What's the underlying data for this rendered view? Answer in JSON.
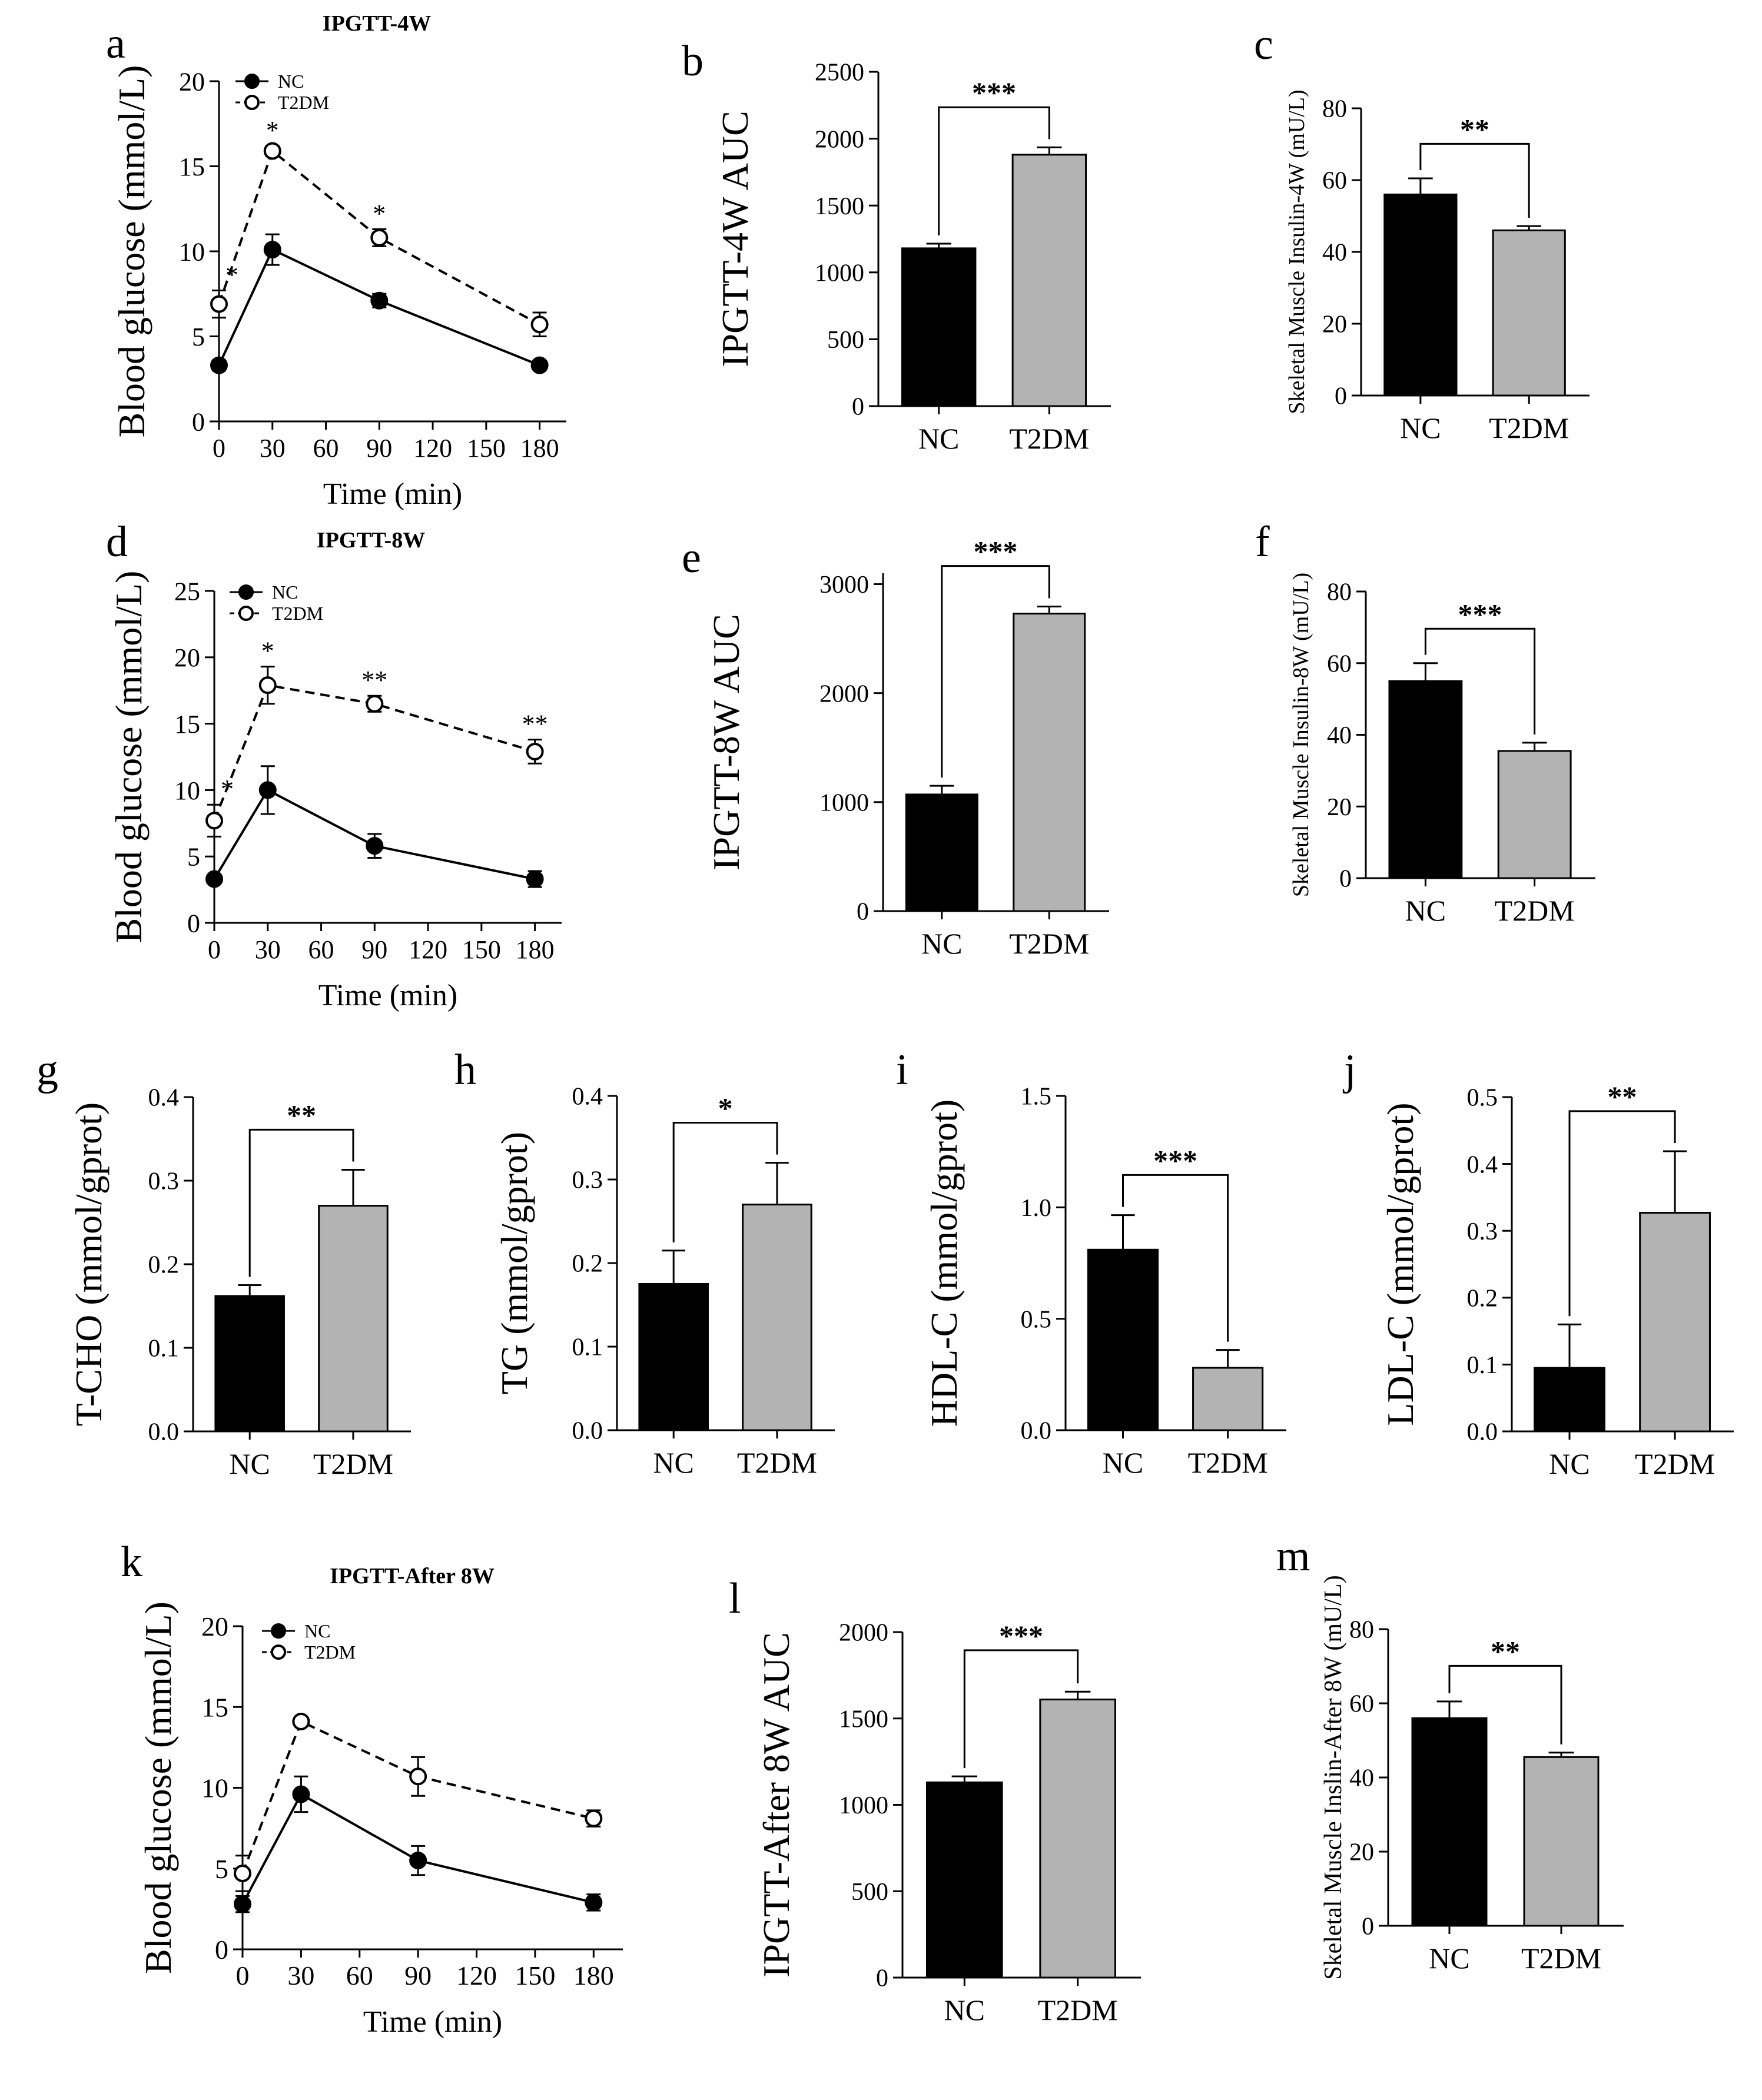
{
  "figure": {
    "colors": {
      "nc": "#000000",
      "t2dm": "#b3b3b3",
      "axis": "#000000"
    }
  },
  "chart_data": [
    {
      "id": "a",
      "panel_label": "a",
      "type": "line",
      "title": "IPGTT-4W",
      "xlabel": "Time (min)",
      "ylabel": "Blood glucose (mmol/L)",
      "x": [
        0,
        30,
        90,
        180
      ],
      "xticks": [
        "0",
        "30",
        "60",
        "90",
        "120",
        "150",
        "180"
      ],
      "xlim": [
        0,
        195
      ],
      "yticks": [
        "0",
        "5",
        "10",
        "15",
        "20"
      ],
      "ylim": [
        0,
        20
      ],
      "series": [
        {
          "name": "NC",
          "values": [
            3.3,
            10.1,
            7.1,
            3.3
          ],
          "errors": [
            0.3,
            0.9,
            0.4,
            0.2
          ],
          "marker": "filled",
          "dash": "solid"
        },
        {
          "name": "T2DM",
          "values": [
            6.9,
            15.9,
            10.8,
            5.7
          ],
          "errors": [
            0.8,
            0.3,
            0.5,
            0.7
          ],
          "marker": "open",
          "dash": "dashed"
        }
      ],
      "annotations": [
        {
          "x": 0,
          "text": "*"
        },
        {
          "x": 30,
          "text": "*"
        },
        {
          "x": 90,
          "text": "*"
        }
      ]
    },
    {
      "id": "b",
      "panel_label": "b",
      "type": "bar",
      "ylabel": "IPGTT-4W AUC",
      "categories": [
        "NC",
        "T2DM"
      ],
      "values": [
        1180,
        1880
      ],
      "errors": [
        35,
        55
      ],
      "yticks": [
        "0",
        "500",
        "1000",
        "1500",
        "2000",
        "2500"
      ],
      "ylim": [
        0,
        2500
      ],
      "significance": "***"
    },
    {
      "id": "c",
      "panel_label": "c",
      "type": "bar",
      "ylabel": "Skeletal Muscle Insulin-4W (mU/L)",
      "categories": [
        "NC",
        "T2DM"
      ],
      "values": [
        56,
        46
      ],
      "errors": [
        4.5,
        1.2
      ],
      "yticks": [
        "0",
        "20",
        "40",
        "60",
        "80"
      ],
      "ylim": [
        0,
        80
      ],
      "significance": "**"
    },
    {
      "id": "d",
      "panel_label": "d",
      "type": "line",
      "title": "IPGTT-8W",
      "xlabel": "Time (min)",
      "ylabel": "Blood glucose (mmol/L)",
      "x": [
        0,
        30,
        90,
        180
      ],
      "xticks": [
        "0",
        "30",
        "60",
        "90",
        "120",
        "150",
        "180"
      ],
      "xlim": [
        0,
        195
      ],
      "yticks": [
        "0",
        "5",
        "10",
        "15",
        "20",
        "25"
      ],
      "ylim": [
        0,
        25
      ],
      "series": [
        {
          "name": "NC",
          "values": [
            3.3,
            10.0,
            5.8,
            3.3
          ],
          "errors": [
            0.3,
            1.8,
            0.9,
            0.6
          ],
          "marker": "filled",
          "dash": "solid"
        },
        {
          "name": "T2DM",
          "values": [
            7.7,
            17.9,
            16.5,
            12.9
          ],
          "errors": [
            1.2,
            1.4,
            0.6,
            0.9
          ],
          "marker": "open",
          "dash": "dashed"
        }
      ],
      "annotations": [
        {
          "x": 0,
          "text": "*"
        },
        {
          "x": 30,
          "text": "*"
        },
        {
          "x": 90,
          "text": "**"
        },
        {
          "x": 180,
          "text": "**"
        }
      ]
    },
    {
      "id": "e",
      "panel_label": "e",
      "type": "bar",
      "ylabel": "IPGTT-8W AUC",
      "categories": [
        "NC",
        "T2DM"
      ],
      "values": [
        1070,
        2730
      ],
      "errors": [
        80,
        65
      ],
      "yticks": [
        "0",
        "1000",
        "2000",
        "3000"
      ],
      "ylim": [
        0,
        3100
      ],
      "significance": "***"
    },
    {
      "id": "f",
      "panel_label": "f",
      "type": "bar",
      "ylabel": "Skeletal Muscle Insulin-8W (mU/L)",
      "categories": [
        "NC",
        "T2DM"
      ],
      "values": [
        55,
        35.5
      ],
      "errors": [
        5,
        2.3
      ],
      "yticks": [
        "0",
        "20",
        "40",
        "60",
        "80"
      ],
      "ylim": [
        0,
        80
      ],
      "significance": "***"
    },
    {
      "id": "g",
      "panel_label": "g",
      "type": "bar",
      "ylabel": "T-CHO (mmol/gprot)",
      "categories": [
        "NC",
        "T2DM"
      ],
      "values": [
        0.162,
        0.27
      ],
      "errors": [
        0.013,
        0.043
      ],
      "yticks": [
        "0.0",
        "0.1",
        "0.2",
        "0.3",
        "0.4"
      ],
      "ylim": [
        0,
        0.4
      ],
      "significance": "**"
    },
    {
      "id": "h",
      "panel_label": "h",
      "type": "bar",
      "ylabel": "TG (mmol/gprot)",
      "categories": [
        "NC",
        "T2DM"
      ],
      "values": [
        0.175,
        0.27
      ],
      "errors": [
        0.04,
        0.05
      ],
      "yticks": [
        "0.0",
        "0.1",
        "0.2",
        "0.3",
        "0.4"
      ],
      "ylim": [
        0,
        0.4
      ],
      "significance": "*"
    },
    {
      "id": "i",
      "panel_label": "i",
      "type": "bar",
      "ylabel": "HDL-C (mmol/gprot)",
      "categories": [
        "NC",
        "T2DM"
      ],
      "values": [
        0.81,
        0.28
      ],
      "errors": [
        0.155,
        0.08
      ],
      "yticks": [
        "0.0",
        "0.5",
        "1.0",
        "1.5"
      ],
      "ylim": [
        0,
        1.5
      ],
      "significance": "***"
    },
    {
      "id": "j",
      "panel_label": "j",
      "type": "bar",
      "ylabel": "LDL-C (mmol/gprot)",
      "categories": [
        "NC",
        "T2DM"
      ],
      "values": [
        0.095,
        0.327
      ],
      "errors": [
        0.065,
        0.092
      ],
      "yticks": [
        "0.0",
        "0.1",
        "0.2",
        "0.3",
        "0.4",
        "0.5"
      ],
      "ylim": [
        0,
        0.5
      ],
      "significance": "**"
    },
    {
      "id": "k",
      "panel_label": "k",
      "type": "line",
      "title": "IPGTT-After 8W",
      "xlabel": "Time (min)",
      "ylabel": "Blood glucose (mmol/L)",
      "x": [
        0,
        30,
        90,
        180
      ],
      "xticks": [
        "0",
        "30",
        "60",
        "90",
        "120",
        "150",
        "180"
      ],
      "xlim": [
        0,
        195
      ],
      "yticks": [
        "0",
        "5",
        "10",
        "15",
        "20"
      ],
      "ylim": [
        0,
        20
      ],
      "series": [
        {
          "name": "NC",
          "values": [
            2.8,
            9.6,
            5.5,
            2.9
          ],
          "errors": [
            0.5,
            1.1,
            0.9,
            0.5
          ],
          "marker": "filled",
          "dash": "solid"
        },
        {
          "name": "T2DM",
          "values": [
            4.7,
            14.1,
            10.7,
            8.1
          ],
          "errors": [
            1.1,
            0.3,
            1.2,
            0.5
          ],
          "marker": "open",
          "dash": "dashed"
        }
      ],
      "annotations": []
    },
    {
      "id": "l",
      "panel_label": "l",
      "type": "bar",
      "ylabel": "IPGTT-After 8W AUC",
      "categories": [
        "NC",
        "T2DM"
      ],
      "values": [
        1130,
        1610
      ],
      "errors": [
        35,
        45
      ],
      "yticks": [
        "0",
        "500",
        "1000",
        "1500",
        "2000"
      ],
      "ylim": [
        0,
        2000
      ],
      "significance": "***"
    },
    {
      "id": "m",
      "panel_label": "m",
      "type": "bar",
      "ylabel": "Skeletal Muscle Inslin-After 8W (mU/L)",
      "categories": [
        "NC",
        "T2DM"
      ],
      "values": [
        56,
        45.5
      ],
      "errors": [
        4.5,
        1.2
      ],
      "yticks": [
        "0",
        "20",
        "40",
        "60",
        "80"
      ],
      "ylim": [
        0,
        80
      ],
      "significance": "**"
    }
  ]
}
